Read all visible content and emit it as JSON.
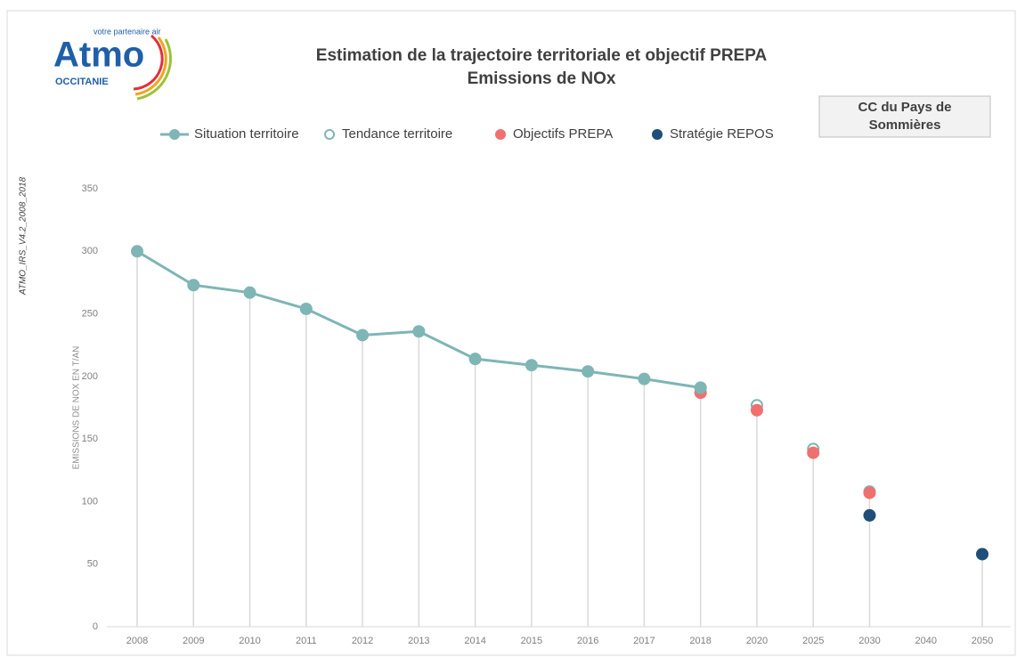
{
  "logo": {
    "name": "Atmo",
    "tagline": "votre partenaire air",
    "region": "OCCITANIE"
  },
  "side_label": "ATMO_IRS_V4.2_2008_2018",
  "box_label": [
    "CC du Pays de",
    "Sommières"
  ],
  "chart_data": {
    "type": "line",
    "title": [
      "Estimation de la trajectoire territoriale et objectif PREPA",
      "Emissions de NOx"
    ],
    "y_label": "EMISSIONS DE NOX EN T/AN",
    "categories": [
      "2008",
      "2009",
      "2010",
      "2011",
      "2012",
      "2013",
      "2014",
      "2015",
      "2016",
      "2017",
      "2018",
      "2020",
      "2025",
      "2030",
      "2040",
      "2050"
    ],
    "series": [
      {
        "name": "Situation territoire",
        "color": "#7fb5b5",
        "style": "line",
        "values": [
          300,
          273,
          267,
          254,
          233,
          236,
          214,
          209,
          204,
          198,
          191,
          null,
          null,
          null,
          null,
          null
        ]
      },
      {
        "name": "Tendance territoire",
        "color": "#7fb5b5",
        "style": "ring",
        "values": [
          null,
          null,
          null,
          null,
          null,
          null,
          null,
          null,
          null,
          null,
          191,
          177,
          142,
          108,
          null,
          null
        ]
      },
      {
        "name": "Objectifs PREPA",
        "color": "#f07070",
        "style": "dot",
        "values": [
          null,
          null,
          null,
          null,
          null,
          null,
          null,
          null,
          null,
          null,
          187,
          173,
          139,
          107,
          null,
          null
        ]
      },
      {
        "name": "Stratégie REPOS",
        "color": "#1f4e79",
        "style": "dot",
        "values": [
          null,
          null,
          null,
          null,
          null,
          null,
          null,
          null,
          null,
          null,
          null,
          null,
          null,
          89,
          null,
          58
        ]
      }
    ],
    "ylim": [
      0,
      350
    ],
    "yticks": [
      0,
      50,
      100,
      150,
      200,
      250,
      300,
      350
    ]
  }
}
